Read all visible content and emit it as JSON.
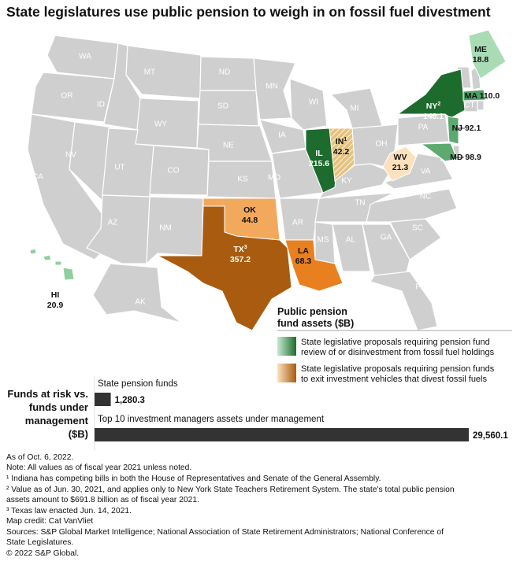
{
  "title": "State legislatures use public pension to weigh in on fossil fuel divestment",
  "map": {
    "states": [
      "WA",
      "OR",
      "CA",
      "NV",
      "ID",
      "MT",
      "WY",
      "UT",
      "AZ",
      "CO",
      "NM",
      "ND",
      "SD",
      "NE",
      "KS",
      "MN",
      "WI",
      "IA",
      "MO",
      "AR",
      "MS",
      "AL",
      "GA",
      "FL",
      "SC",
      "NC",
      "TN",
      "KY",
      "OH",
      "MI",
      "PA",
      "VA",
      "VT",
      "NH",
      "RI",
      "CT",
      "DE",
      "DC",
      "AK"
    ],
    "highlighted": [
      {
        "abbr": "IL",
        "value": 215.6,
        "color": "#1e6b2e"
      },
      {
        "abbr": "IN",
        "sup": "1",
        "value": 42.2,
        "color": "#e7c27d",
        "hatched": true
      },
      {
        "abbr": "NY",
        "sup": "2",
        "value": 148.1,
        "color": "#1e6b2e"
      },
      {
        "abbr": "ME",
        "value": 18.8,
        "color": "#a9dcb5"
      },
      {
        "abbr": "MA",
        "value": 110.0,
        "value_label": "110.0",
        "color": "#4c9f63"
      },
      {
        "abbr": "NJ",
        "value": 92.1,
        "color": "#5caa6f"
      },
      {
        "abbr": "MD",
        "value": 98.9,
        "color": "#5caa6f"
      },
      {
        "abbr": "WV",
        "value": 21.3,
        "color": "#fbe2bd"
      },
      {
        "abbr": "OK",
        "value": 44.8,
        "color": "#f2a95c"
      },
      {
        "abbr": "TX",
        "sup": "3",
        "value": 357.2,
        "color": "#a95b0f"
      },
      {
        "abbr": "LA",
        "value": 68.3,
        "color": "#e8801f"
      },
      {
        "abbr": "HI",
        "value": 20.9,
        "color": "#8fcf9e"
      }
    ]
  },
  "legend": {
    "title_lines": [
      "Public pension",
      "fund assets ($B)"
    ],
    "items": [
      {
        "lines": [
          "State legislative proposals requiring pension fund",
          "review of or disinvestment from fossil fuel holdings"
        ],
        "colors": [
          "#c9ead1",
          "#1e6b2e"
        ]
      },
      {
        "lines": [
          "State legislative proposals requiring pension funds",
          "to exit investment vehicles that divest fossil fuels"
        ],
        "colors": [
          "#fbe2bd",
          "#a95b0f"
        ]
      }
    ]
  },
  "funds_chart": {
    "type": "bar",
    "title_lines": [
      "Funds at risk vs.",
      "funds under",
      "management",
      "($B)"
    ],
    "categories": [
      "State pension funds",
      "Top 10 investment managers assets under management"
    ],
    "values": [
      1280.3,
      29560.1
    ],
    "value_labels": [
      "1,280.3",
      "29,560.1"
    ],
    "color": "#333333"
  },
  "notes": [
    "As of Oct. 6, 2022.",
    "Note: All values as of fiscal year 2021 unless noted.",
    "¹ Indiana has competing bills in both the House of Representatives and Senate of the General Assembly.",
    "² Value as of Jun. 30, 2021, and applies only to New York State Teachers Retirement System. The state's total public pension",
    "   assets amount to $691.8 billion as of fiscal year 2021.",
    "³ Texas law enacted Jun. 14, 2021.",
    "Map credit: Cat VanVliet",
    "Sources: S&P Global Market Intelligence; National Association of State Retirement Administrators; National Conference of",
    "State Legislatures.",
    "© 2022 S&P Global."
  ]
}
